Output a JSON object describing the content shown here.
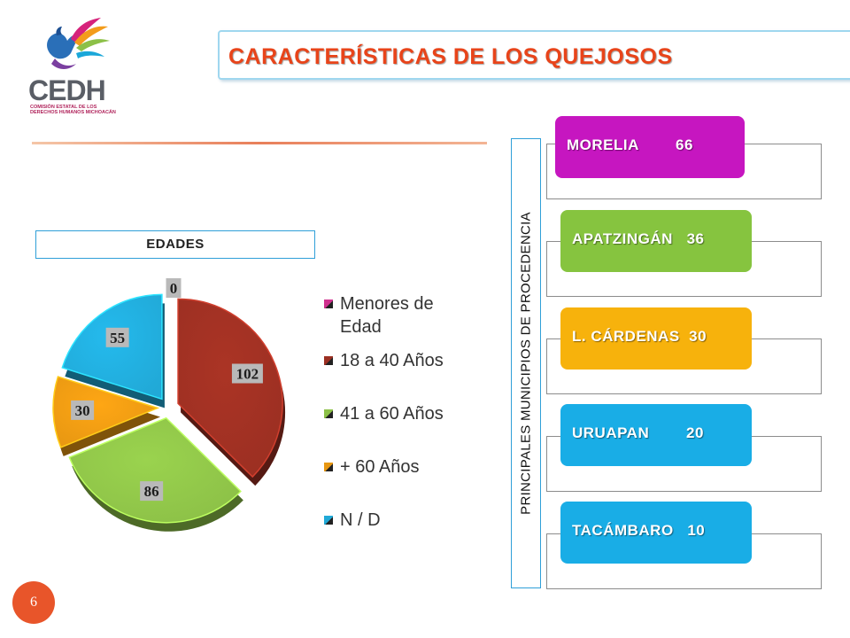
{
  "logo": {
    "wordmark": "CEDH",
    "subtitle": "COMISIÓN ESTATAL DE LOS DERECHOS HUMANOS MICHOACÁN"
  },
  "title": "CARACTERÍSTICAS DE LOS QUEJOSOS",
  "page_number": "6",
  "chart_data": [
    {
      "type": "pie",
      "title": "EDADES",
      "categories": [
        "Menores de Edad",
        "18 a 40 Años",
        "41 a 60 Años",
        "+ 60 Años",
        "N / D"
      ],
      "values": [
        0,
        102,
        86,
        30,
        55
      ],
      "colors": [
        "#d0308e",
        "#9b2f22",
        "#8cc047",
        "#e79712",
        "#21a9d7"
      ],
      "legend_position": "right",
      "exploded": true
    },
    {
      "type": "table",
      "title": "PRINCIPALES MUNICIPIOS DE   PROCEDENCIA",
      "rows": [
        {
          "name": "MORELIA",
          "value": 66,
          "label": "MORELIA        66",
          "color": "#c616c0"
        },
        {
          "name": "APATZINGÁN",
          "value": 36,
          "label": "APATZINGÁN   36",
          "color": "#86c43f"
        },
        {
          "name": "L. CÁRDENAS",
          "value": 30,
          "label": "L. CÁRDENAS  30",
          "color": "#f7b20c"
        },
        {
          "name": "URUAPAN",
          "value": 20,
          "label": "URUAPAN        20",
          "color": "#19ade6"
        },
        {
          "name": "TACÁMBARO",
          "value": 10,
          "label": "TACÁMBARO   10",
          "color": "#19ade6"
        }
      ]
    }
  ]
}
